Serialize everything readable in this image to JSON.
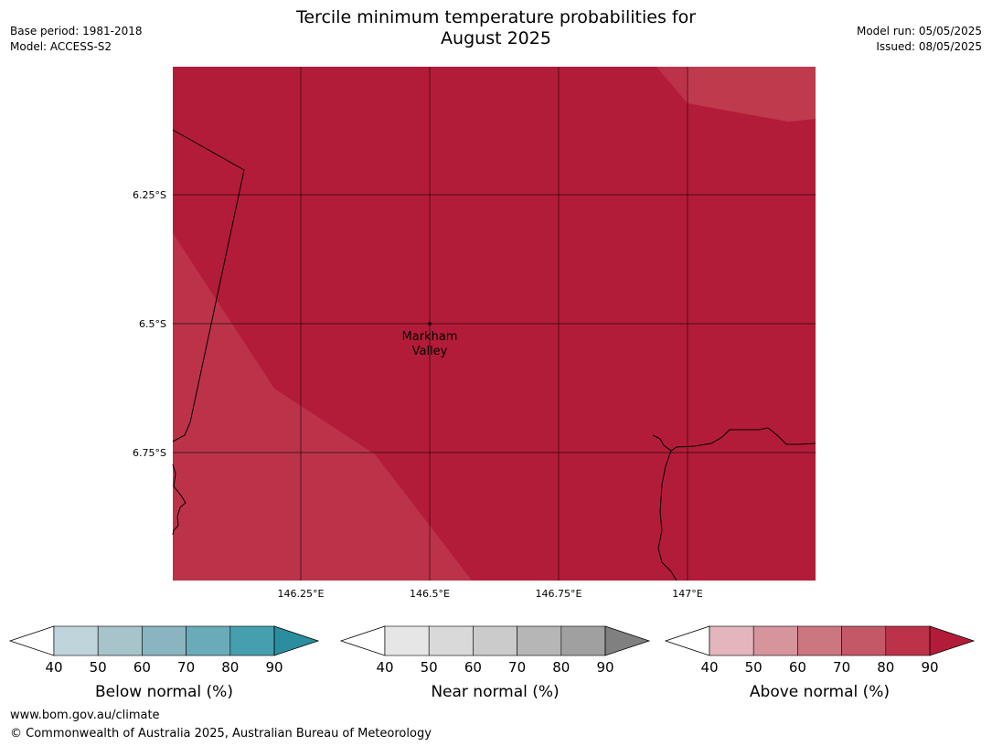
{
  "header": {
    "title_line1": "Tercile minimum temperature probabilities for",
    "title_line2": "August 2025",
    "base_period": "Base period: 1981-2018",
    "model": "Model: ACCESS-S2",
    "model_run": "Model run: 05/05/2025",
    "issued": "Issued: 08/05/2025"
  },
  "map": {
    "lat_labels": [
      "6.25°S",
      "6.5°S",
      "6.75°S"
    ],
    "lon_labels": [
      "146.25°E",
      "146.5°E",
      "146.75°E",
      "147°E"
    ],
    "place": {
      "name_line1": "Markham",
      "name_line2": "Valley",
      "lon": 146.5,
      "lat": -6.5
    },
    "fill_dominant": "80-90% above normal",
    "fill_secondary": "70-80% above normal",
    "colors": {
      "dominant": "#b31c38",
      "secondary": "#bc3349"
    }
  },
  "legends": [
    {
      "label": "Below normal (%)",
      "ticks": [
        "40",
        "50",
        "60",
        "70",
        "80",
        "90"
      ],
      "colors": [
        "#bfd5db",
        "#a6c4ca",
        "#89b5c1",
        "#6aabb9",
        "#469fae",
        "#2a8e9f"
      ]
    },
    {
      "label": "Near normal (%)",
      "ticks": [
        "40",
        "50",
        "60",
        "70",
        "80",
        "90"
      ],
      "colors": [
        "#e6e6e6",
        "#d9d9d9",
        "#cbcbcb",
        "#b6b6b6",
        "#a0a0a0",
        "#808080"
      ]
    },
    {
      "label": "Above normal (%)",
      "ticks": [
        "40",
        "50",
        "60",
        "70",
        "80",
        "90"
      ],
      "colors": [
        "#e2b6bc",
        "#d6949c",
        "#cc7780",
        "#c45867",
        "#bc3349",
        "#b31c38"
      ]
    }
  ],
  "footer": {
    "website": "www.bom.gov.au/climate",
    "copyright": "© Commonwealth of Australia 2025, Australian Bureau of Meteorology"
  }
}
